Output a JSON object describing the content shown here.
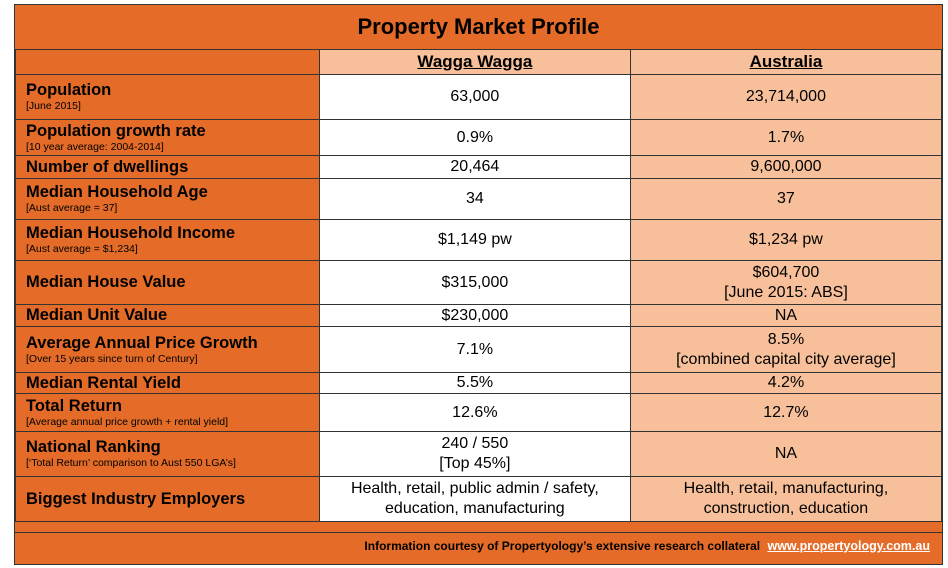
{
  "title": "Property Market Profile",
  "columns": {
    "wagga": "Wagga Wagga",
    "australia": "Australia"
  },
  "rows": [
    {
      "label": "Population",
      "sub": "[June 2015]",
      "wagga": [
        "63,000"
      ],
      "australia": [
        "23,714,000"
      ]
    },
    {
      "label": "Population growth rate",
      "sub": "[10 year average: 2004-2014]",
      "wagga": [
        "0.9%"
      ],
      "australia": [
        "1.7%"
      ]
    },
    {
      "label": "Number of dwellings",
      "sub": "",
      "wagga": [
        "20,464"
      ],
      "australia": [
        "9,600,000"
      ]
    },
    {
      "label": "Median Household Age",
      "sub": "[Aust average = 37]",
      "wagga": [
        "34"
      ],
      "australia": [
        "37"
      ]
    },
    {
      "label": "Median Household Income",
      "sub": "[Aust average = $1,234]",
      "wagga": [
        "$1,149 pw"
      ],
      "australia": [
        "$1,234 pw"
      ]
    },
    {
      "label": "Median House Value",
      "sub": "",
      "wagga": [
        "$315,000"
      ],
      "australia": [
        "$604,700",
        "[June 2015: ABS]"
      ]
    },
    {
      "label": "Median Unit Value",
      "sub": "",
      "wagga": [
        "$230,000"
      ],
      "australia": [
        "NA"
      ]
    },
    {
      "label": "Average Annual Price Growth",
      "sub": "[Over 15 years since turn of Century]",
      "wagga": [
        "7.1%"
      ],
      "australia": [
        "8.5%",
        "[combined capital city average]"
      ]
    },
    {
      "label": "Median Rental Yield",
      "sub": "",
      "wagga": [
        "5.5%"
      ],
      "australia": [
        "4.2%"
      ]
    },
    {
      "label": "Total Return",
      "sub": "[Average annual price growth + rental yield]",
      "wagga": [
        "12.6%"
      ],
      "australia": [
        "12.7%"
      ]
    },
    {
      "label": "National Ranking",
      "sub": "[‘Total Return’ comparison to Aust 550 LGA’s]",
      "wagga": [
        "240 / 550",
        "[Top 45%]"
      ],
      "australia": [
        "NA"
      ]
    },
    {
      "label": "Biggest Industry Employers",
      "sub": "",
      "wagga": [
        "Health, retail, public admin / safety,",
        "education, manufacturing"
      ],
      "australia": [
        "Health, retail, manufacturing,",
        "construction, education"
      ]
    }
  ],
  "footer": {
    "text": "Information courtesy of Propertyology’s extensive research collateral",
    "link": "www.propertyology.com.au"
  },
  "colors": {
    "orange": "#e46c28",
    "peach": "#f7c09a",
    "white": "#ffffff"
  }
}
